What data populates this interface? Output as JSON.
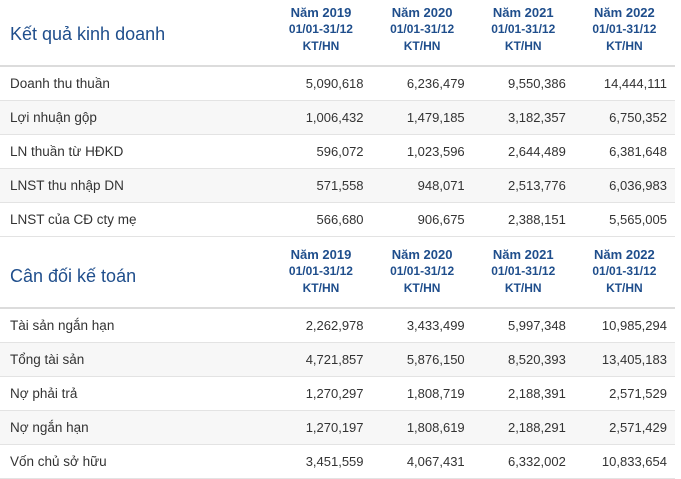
{
  "income": {
    "title": "Kết quả kinh doanh",
    "columns": [
      {
        "year": "Năm 2019",
        "period": "01/01-31/12",
        "type": "KT/HN"
      },
      {
        "year": "Năm 2020",
        "period": "01/01-31/12",
        "type": "KT/HN"
      },
      {
        "year": "Năm 2021",
        "period": "01/01-31/12",
        "type": "KT/HN"
      },
      {
        "year": "Năm 2022",
        "period": "01/01-31/12",
        "type": "KT/HN"
      }
    ],
    "rows": [
      {
        "label": "Doanh thu thuần",
        "values": [
          "5,090,618",
          "6,236,479",
          "9,550,386",
          "14,444,111"
        ]
      },
      {
        "label": "Lợi nhuận gộp",
        "values": [
          "1,006,432",
          "1,479,185",
          "3,182,357",
          "6,750,352"
        ]
      },
      {
        "label": "LN thuần từ HĐKD",
        "values": [
          "596,072",
          "1,023,596",
          "2,644,489",
          "6,381,648"
        ]
      },
      {
        "label": "LNST thu nhập DN",
        "values": [
          "571,558",
          "948,071",
          "2,513,776",
          "6,036,983"
        ]
      },
      {
        "label": "LNST của CĐ cty mẹ",
        "values": [
          "566,680",
          "906,675",
          "2,388,151",
          "5,565,005"
        ]
      }
    ]
  },
  "balance": {
    "title": "Cân đối kế toán",
    "columns": [
      {
        "year": "Năm 2019",
        "period": "01/01-31/12",
        "type": "KT/HN"
      },
      {
        "year": "Năm 2020",
        "period": "01/01-31/12",
        "type": "KT/HN"
      },
      {
        "year": "Năm 2021",
        "period": "01/01-31/12",
        "type": "KT/HN"
      },
      {
        "year": "Năm 2022",
        "period": "01/01-31/12",
        "type": "KT/HN"
      }
    ],
    "rows": [
      {
        "label": "Tài sản ngắn hạn",
        "values": [
          "2,262,978",
          "3,433,499",
          "5,997,348",
          "10,985,294"
        ]
      },
      {
        "label": "Tổng tài sản",
        "values": [
          "4,721,857",
          "5,876,150",
          "8,520,393",
          "13,405,183"
        ]
      },
      {
        "label": "Nợ phải trả",
        "values": [
          "1,270,297",
          "1,808,719",
          "2,188,391",
          "2,571,529"
        ]
      },
      {
        "label": "Nợ ngắn hạn",
        "values": [
          "1,270,197",
          "1,808,619",
          "2,188,291",
          "2,571,429"
        ]
      },
      {
        "label": "Vốn chủ sở hữu",
        "values": [
          "3,451,559",
          "4,067,431",
          "6,332,002",
          "10,833,654"
        ]
      }
    ]
  }
}
